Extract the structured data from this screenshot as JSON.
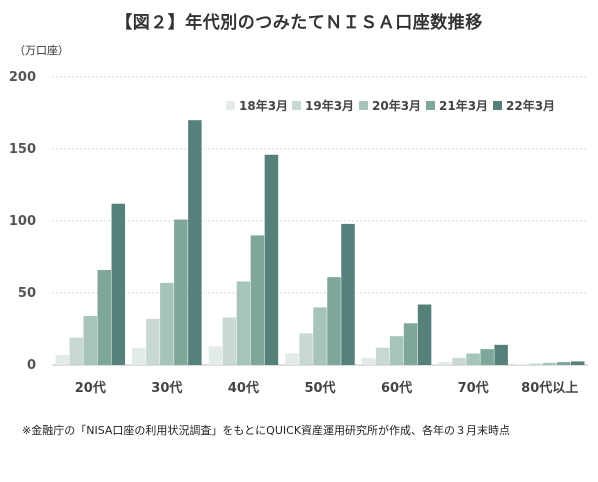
{
  "title": "【図２】年代別のつみたてＮＩＳＡ口座数推移",
  "unit_label": "（万口座）",
  "note": "※金融庁の「NISA口座の利用状況調査」をもとにQUICK資産運用研究所が作成、各年の３月末時点",
  "chart_data": {
    "type": "bar",
    "title": "【図２】年代別のつみたてＮＩＳＡ口座数推移",
    "ylabel": "（万口座）",
    "ylim": [
      0,
      200
    ],
    "yticks": [
      0,
      50,
      100,
      150,
      200
    ],
    "grid": true,
    "legend_position": "top-right",
    "categories": [
      "20代",
      "30代",
      "40代",
      "50代",
      "60代",
      "70代",
      "80代以上"
    ],
    "series": [
      {
        "name": "18年3月",
        "color": "#e3ebe7",
        "values": [
          7,
          12,
          13,
          8,
          5,
          2,
          0.5
        ]
      },
      {
        "name": "19年3月",
        "color": "#c8d9d2",
        "values": [
          19,
          32,
          33,
          22,
          12,
          5,
          1
        ]
      },
      {
        "name": "20年3月",
        "color": "#a7c4b9",
        "values": [
          34,
          57,
          58,
          40,
          20,
          8,
          1.5
        ]
      },
      {
        "name": "21年3月",
        "color": "#7ea69a",
        "values": [
          66,
          101,
          90,
          61,
          29,
          11,
          2
        ]
      },
      {
        "name": "22年3月",
        "color": "#56807a",
        "values": [
          112,
          170,
          146,
          98,
          42,
          14,
          2.5
        ]
      }
    ]
  }
}
